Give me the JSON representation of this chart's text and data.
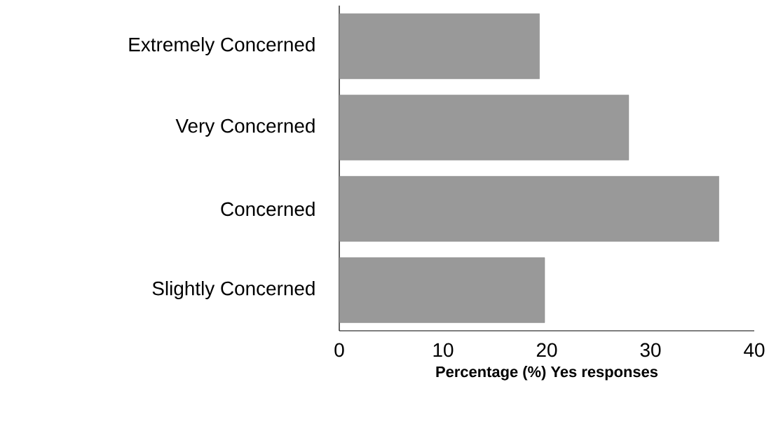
{
  "chart_data": {
    "type": "bar",
    "orientation": "horizontal",
    "xlabel": "Percentage (%) Yes responses",
    "categories": [
      "Extremely Concerned",
      "Very Concerned",
      "Concerned",
      "Slightly Concerned"
    ],
    "values": [
      19.3,
      27.9,
      36.6,
      19.8
    ],
    "color": "#999999",
    "xlim": [
      0,
      40
    ],
    "xticks": [
      0,
      10,
      20,
      30,
      40
    ]
  }
}
